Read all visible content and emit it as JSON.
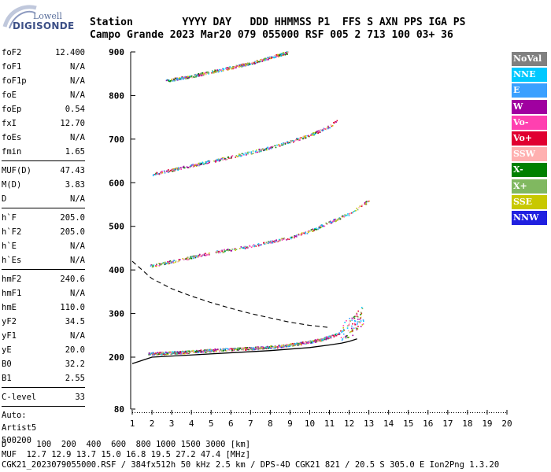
{
  "logo": {
    "line1": "Lowell",
    "line2": "DIGISONDE"
  },
  "header": {
    "labels": "Station        YYYY DAY   DDD HHMMSS P1  FFS S AXN PPS IGA PS",
    "values": "Campo Grande 2023 Mar20 079 055000 RSF 005 2 713 100 03+ 36"
  },
  "params": {
    "group1": [
      {
        "name": "foF2",
        "value": "12.400"
      },
      {
        "name": "foF1",
        "value": "N/A"
      },
      {
        "name": "foF1p",
        "value": "N/A"
      },
      {
        "name": "foE",
        "value": "N/A"
      },
      {
        "name": "foEp",
        "value": "0.54"
      },
      {
        "name": "fxI",
        "value": "12.70"
      },
      {
        "name": "foEs",
        "value": "N/A"
      },
      {
        "name": "fmin",
        "value": "1.65"
      }
    ],
    "group2": [
      {
        "name": "MUF(D)",
        "value": "47.43"
      },
      {
        "name": "M(D)",
        "value": "3.83"
      },
      {
        "name": "D",
        "value": "N/A"
      }
    ],
    "group3": [
      {
        "name": "h`F",
        "value": "205.0"
      },
      {
        "name": "h`F2",
        "value": "205.0"
      },
      {
        "name": "h`E",
        "value": "N/A"
      },
      {
        "name": "h`Es",
        "value": "N/A"
      }
    ],
    "group4": [
      {
        "name": "hmF2",
        "value": "240.6"
      },
      {
        "name": "hmF1",
        "value": "N/A"
      },
      {
        "name": "hmE",
        "value": "110.0"
      },
      {
        "name": "yF2",
        "value": "34.5"
      },
      {
        "name": "yF1",
        "value": "N/A"
      },
      {
        "name": "yE",
        "value": "20.0"
      },
      {
        "name": "B0",
        "value": "32.2"
      },
      {
        "name": "B1",
        "value": "2.55"
      }
    ],
    "group5": [
      {
        "name": "C-level",
        "value": "33"
      }
    ],
    "autoscale": [
      "Auto:",
      "Artist5",
      "500200"
    ]
  },
  "legend": [
    {
      "label": "NoVal",
      "color": "#808080"
    },
    {
      "label": "NNE",
      "color": "#00c8ff"
    },
    {
      "label": "E",
      "color": "#3aa0ff"
    },
    {
      "label": "W",
      "color": "#a000a0"
    },
    {
      "label": "Vo-",
      "color": "#ff40b0"
    },
    {
      "label": "Vo+",
      "color": "#e00030"
    },
    {
      "label": "SSW",
      "color": "#ffb0b0"
    },
    {
      "label": "X-",
      "color": "#008000"
    },
    {
      "label": "X+",
      "color": "#80b860"
    },
    {
      "label": "SSE",
      "color": "#c8c800"
    },
    {
      "label": "NNW",
      "color": "#2020e0"
    }
  ],
  "footer": {
    "line1": "D      100  200  400  600  800 1000 1500 3000 [km]",
    "line2": "MUF  12.7 12.9 13.7 15.0 16.8 19.5 27.2 47.4 [MHz]",
    "line3": "CGK21_2023079055000.RSF / 384fx512h 50 kHz 2.5 km / DPS-4D CGK21 821 / 20.5 S 305.0 E Ion2Png 1.3.20"
  },
  "chart_data": {
    "type": "scatter",
    "xlim": [
      1,
      20
    ],
    "ylim": [
      80,
      900
    ],
    "x_ticks": [
      1,
      2,
      3,
      4,
      5,
      6,
      7,
      8,
      9,
      10,
      11,
      12,
      13,
      14,
      15,
      16,
      17,
      18,
      19,
      20
    ],
    "y_ticks": [
      80,
      200,
      300,
      400,
      500,
      600,
      700,
      800,
      900
    ],
    "series": [
      {
        "name": "Vo+",
        "x": [
          1.8,
          2.5,
          3.5,
          4.5,
          5.5,
          6.5,
          7.5,
          8.5,
          9.5,
          10.5,
          11.5,
          12.2,
          12.7
        ],
        "y": [
          208,
          210,
          212,
          215,
          218,
          220,
          222,
          226,
          232,
          240,
          255,
          275,
          300
        ]
      },
      {
        "name": "Vo+",
        "x": [
          1.9,
          3,
          4,
          5,
          6,
          7,
          8,
          9,
          10,
          11,
          12,
          12.5,
          13
        ],
        "y": [
          410,
          420,
          430,
          440,
          448,
          455,
          465,
          475,
          490,
          510,
          530,
          545,
          560
        ]
      },
      {
        "name": "Vo+",
        "x": [
          2,
          3,
          4,
          5,
          6,
          7,
          8,
          9,
          10,
          11,
          11.4
        ],
        "y": [
          620,
          630,
          640,
          650,
          660,
          670,
          682,
          695,
          710,
          730,
          745
        ]
      },
      {
        "name": "Vo+",
        "x": [
          2.7,
          4,
          5,
          6,
          7,
          8,
          8.9
        ],
        "y": [
          835,
          845,
          855,
          865,
          875,
          888,
          900
        ]
      }
    ],
    "profile_true_height": {
      "x": [
        1.0,
        2.0,
        4.0,
        6.0,
        8.0,
        10.0,
        11.0,
        11.6,
        12.0,
        12.4
      ],
      "y": [
        185,
        200,
        205,
        210,
        215,
        222,
        228,
        232,
        236,
        242
      ]
    },
    "profile_extrapolated": {
      "x": [
        1.0,
        2.0,
        3.0,
        4.0,
        5.0,
        6.0,
        7.0,
        8.0,
        9.0,
        10.0,
        11.0
      ],
      "y": [
        420,
        380,
        357,
        340,
        325,
        312,
        300,
        290,
        280,
        273,
        268
      ]
    }
  }
}
